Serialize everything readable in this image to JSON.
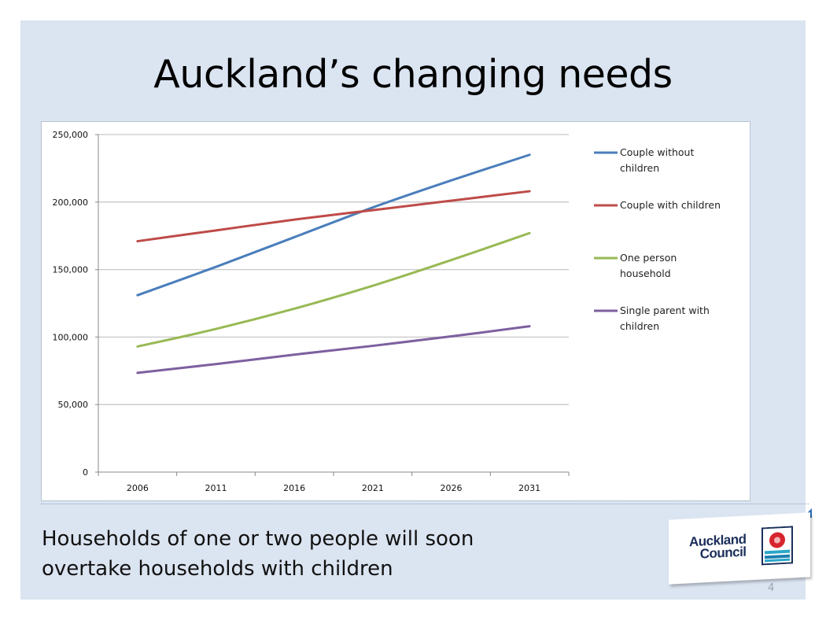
{
  "slide": {
    "title": "Auckland’s changing needs",
    "caption_line1": "Households of one or two people will soon",
    "caption_line2": "overtake households with children",
    "page_number": "4",
    "logo_line1": "Auckland",
    "logo_line2": "Council"
  },
  "colors": {
    "background": "#dbe4f1",
    "couple_without_children": "#4a7ebb",
    "couple_with_children": "#be4b48",
    "one_person": "#98b954",
    "single_parent": "#7d60a0",
    "gridline": "#c8c8c8"
  },
  "chart_data": {
    "type": "line",
    "title": "",
    "xlabel": "",
    "ylabel": "",
    "categories": [
      "2006",
      "2011",
      "2016",
      "2021",
      "2026",
      "2031"
    ],
    "ylim": [
      0,
      250000
    ],
    "yticks": [
      "0",
      "50,000",
      "100,000",
      "150,000",
      "200,000",
      "250,000"
    ],
    "ytick_values": [
      0,
      50000,
      100000,
      150000,
      200000,
      250000
    ],
    "grid": true,
    "legend_position": "right",
    "series": [
      {
        "name": "Couple without children",
        "legend_lines": [
          "Couple without",
          "children"
        ],
        "color": "#4a7ebb",
        "values": [
          131000,
          152000,
          174000,
          196000,
          216000,
          235000
        ]
      },
      {
        "name": "Couple with children",
        "legend_lines": [
          "Couple with children"
        ],
        "color": "#be4b48",
        "values": [
          171000,
          179000,
          187000,
          194000,
          201000,
          208000
        ]
      },
      {
        "name": "One person household",
        "legend_lines": [
          "One person",
          "household"
        ],
        "color": "#98b954",
        "values": [
          93000,
          106000,
          121000,
          138000,
          157000,
          177000
        ]
      },
      {
        "name": "Single parent with children",
        "legend_lines": [
          "Single parent with",
          "children"
        ],
        "color": "#7d60a0",
        "values": [
          73500,
          80000,
          87000,
          93500,
          100500,
          108000
        ]
      }
    ]
  }
}
